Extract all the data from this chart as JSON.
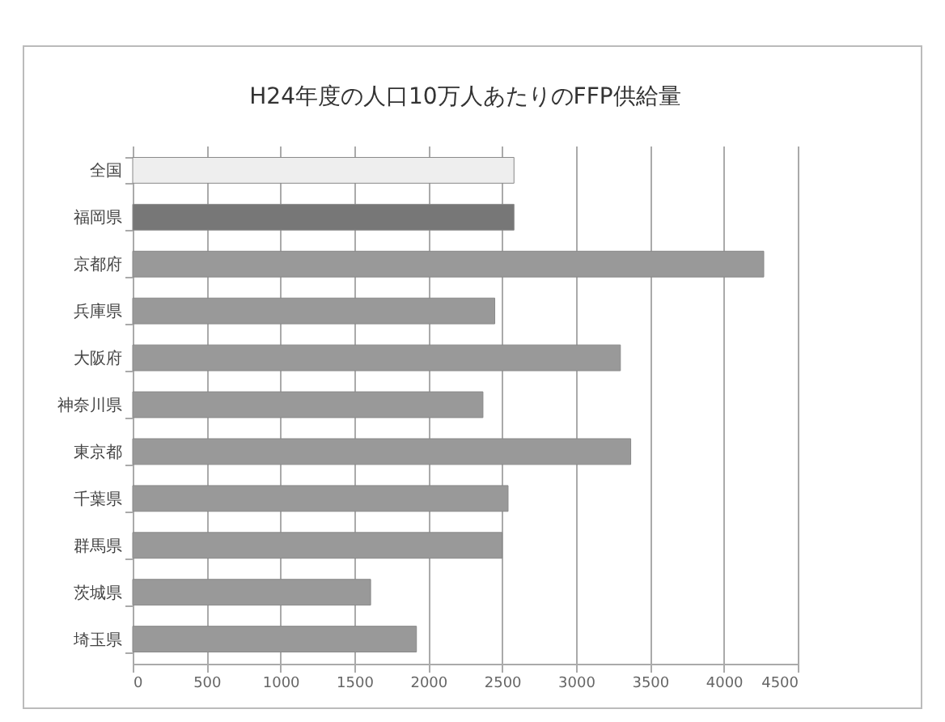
{
  "chart_data": {
    "type": "bar",
    "orientation": "horizontal",
    "title": "H24年度の人口10万人あたりのFFP供給量",
    "categories": [
      "全国",
      "福岡県",
      "京都府",
      "兵庫県",
      "大阪府",
      "神奈川県",
      "東京都",
      "千葉県",
      "群馬県",
      "茨城県",
      "埼玉県"
    ],
    "values": [
      2580,
      2580,
      4270,
      2450,
      3300,
      2370,
      3370,
      2540,
      2500,
      1610,
      1920
    ],
    "colors": [
      "#eeeeee",
      "#777777",
      "#999999",
      "#999999",
      "#999999",
      "#999999",
      "#999999",
      "#999999",
      "#999999",
      "#999999",
      "#999999"
    ],
    "xlim": [
      0,
      4500
    ],
    "xticks": [
      0,
      500,
      1000,
      1500,
      2000,
      2500,
      3000,
      3500,
      4000,
      4500
    ],
    "grid": "x"
  }
}
